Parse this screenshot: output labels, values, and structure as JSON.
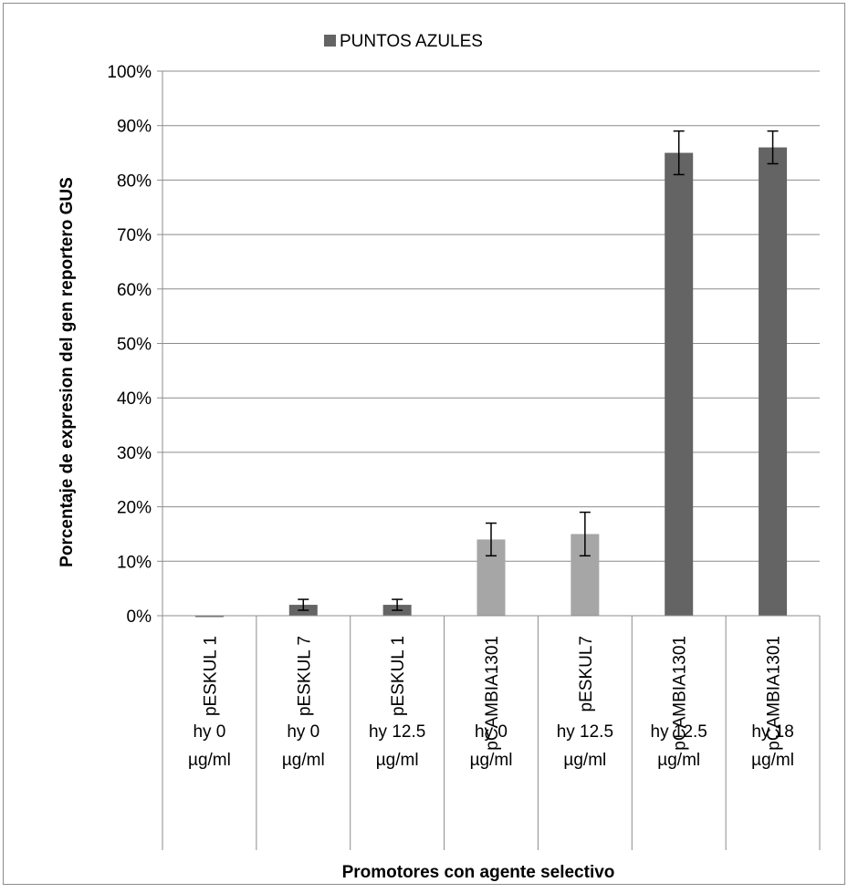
{
  "chart_data": {
    "type": "bar",
    "legend": {
      "label": "PUNTOS AZULES",
      "placement": "top-center",
      "color": "#646464"
    },
    "ylabel": "Porcentaje de expresion del gen reportero GUS",
    "xlabel": "Promotores con agente selectivo",
    "ylim": [
      0,
      1
    ],
    "yticks": [
      "0%",
      "10%",
      "20%",
      "30%",
      "40%",
      "50%",
      "60%",
      "70%",
      "80%",
      "90%",
      "100%"
    ],
    "grid": true,
    "categories": [
      {
        "promoter": "pESKUL 1",
        "treatment": [
          "hy 0",
          "µg/ml"
        ]
      },
      {
        "promoter": "pESKUL 7",
        "treatment": [
          "hy 0",
          "µg/ml"
        ]
      },
      {
        "promoter": "pESKUL 1",
        "treatment": [
          "hy 12.5",
          "µg/ml"
        ]
      },
      {
        "promoter": "pCAMBIA1301",
        "treatment": [
          "hy 0",
          "µg/ml"
        ]
      },
      {
        "promoter": "pESKUL7",
        "treatment": [
          "hy 12.5",
          "µg/ml"
        ]
      },
      {
        "promoter": "pCAMBIA1301",
        "treatment": [
          "hy 12.5",
          "µg/ml"
        ]
      },
      {
        "promoter": "pCAMBIA1301",
        "treatment": [
          "hy 18",
          "µg/ml"
        ]
      }
    ],
    "values": [
      0.0,
      0.02,
      0.02,
      0.14,
      0.15,
      0.85,
      0.86
    ],
    "errors": [
      0.0,
      0.01,
      0.01,
      0.03,
      0.04,
      0.04,
      0.03
    ],
    "bar_colors": [
      "#646464",
      "#646464",
      "#646464",
      "#a6a6a6",
      "#a6a6a6",
      "#646464",
      "#646464"
    ]
  }
}
